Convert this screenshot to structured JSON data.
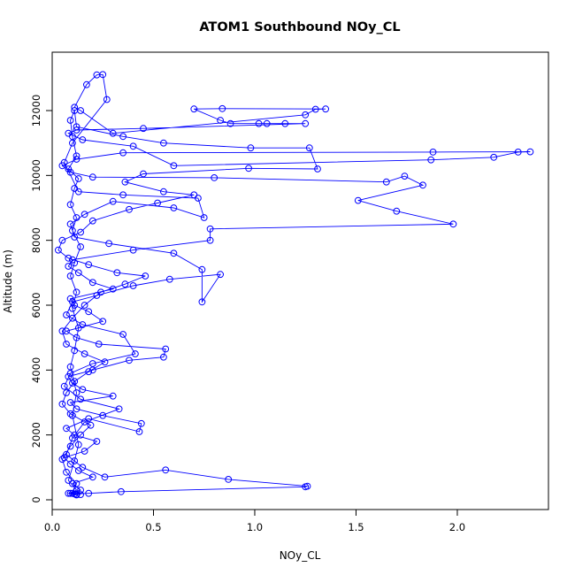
{
  "chart_data": {
    "type": "scatter",
    "title": "ATOM1 Southbound NOy_CL",
    "xlabel": "NOy_CL",
    "ylabel": "Altitude (m)",
    "xlim": [
      0,
      2.45
    ],
    "ylim": [
      -300,
      13800
    ],
    "x_ticks": [
      0.0,
      0.5,
      1.0,
      1.5,
      2.0
    ],
    "x_tick_labels": [
      "0.0",
      "0.5",
      "1.0",
      "1.5",
      "2.0"
    ],
    "y_ticks": [
      0,
      2000,
      4000,
      6000,
      8000,
      10000,
      12000
    ],
    "y_tick_labels": [
      "0",
      "2000",
      "4000",
      "6000",
      "8000",
      "10000",
      "12000"
    ],
    "grid": false,
    "legend": "none",
    "line_and_points": true,
    "series": [
      {
        "color": "#0000ff",
        "points": [
          [
            0.12,
            150
          ],
          [
            0.08,
            200
          ],
          [
            0.14,
            300
          ],
          [
            0.1,
            500
          ],
          [
            0.2,
            700
          ],
          [
            0.13,
            900
          ],
          [
            0.09,
            1100
          ],
          [
            0.06,
            1300
          ],
          [
            0.16,
            1500
          ],
          [
            0.22,
            1800
          ],
          [
            0.11,
            2000
          ],
          [
            0.07,
            2200
          ],
          [
            0.18,
            2500
          ],
          [
            0.43,
            2100
          ],
          [
            0.44,
            2350
          ],
          [
            0.25,
            2600
          ],
          [
            0.12,
            2800
          ],
          [
            0.09,
            3000
          ],
          [
            0.3,
            3200
          ],
          [
            0.15,
            3400
          ],
          [
            0.1,
            3600
          ],
          [
            0.08,
            3800
          ],
          [
            0.2,
            4000
          ],
          [
            0.38,
            4300
          ],
          [
            0.55,
            4400
          ],
          [
            0.56,
            4650
          ],
          [
            0.23,
            4800
          ],
          [
            0.12,
            5000
          ],
          [
            0.07,
            5200
          ],
          [
            0.25,
            5500
          ],
          [
            0.18,
            5800
          ],
          [
            0.11,
            6000
          ],
          [
            0.09,
            6200
          ],
          [
            0.3,
            6500
          ],
          [
            0.2,
            6700
          ],
          [
            0.13,
            7000
          ],
          [
            0.08,
            7200
          ],
          [
            0.1,
            7400
          ],
          [
            0.4,
            7700
          ],
          [
            0.78,
            8000
          ],
          [
            0.78,
            8350
          ],
          [
            1.98,
            8500
          ],
          [
            1.7,
            8900
          ],
          [
            1.51,
            9230
          ],
          [
            1.83,
            9700
          ],
          [
            1.74,
            9980
          ],
          [
            1.65,
            9800
          ],
          [
            0.8,
            9930
          ],
          [
            0.2,
            9950
          ],
          [
            0.09,
            10100
          ],
          [
            0.05,
            10300
          ],
          [
            0.12,
            10500
          ],
          [
            0.35,
            10700
          ],
          [
            1.88,
            10720
          ],
          [
            2.36,
            10730
          ],
          [
            2.3,
            10720
          ],
          [
            2.18,
            10560
          ],
          [
            1.87,
            10480
          ],
          [
            0.6,
            10300
          ],
          [
            0.4,
            10900
          ],
          [
            0.15,
            11100
          ],
          [
            0.08,
            11300
          ],
          [
            0.12,
            11400
          ],
          [
            0.45,
            11450
          ],
          [
            1.25,
            11600
          ],
          [
            1.15,
            11600
          ],
          [
            1.06,
            11600
          ],
          [
            1.02,
            11600
          ],
          [
            0.88,
            11600
          ],
          [
            0.83,
            11700
          ],
          [
            0.7,
            12050
          ],
          [
            0.84,
            12060
          ],
          [
            1.35,
            12050
          ],
          [
            1.3,
            12040
          ],
          [
            1.25,
            11870
          ],
          [
            0.3,
            11300
          ],
          [
            0.14,
            12000
          ],
          [
            0.11,
            12100
          ],
          [
            0.17,
            12800
          ],
          [
            0.22,
            13100
          ],
          [
            0.25,
            13110
          ],
          [
            0.27,
            12340
          ],
          [
            0.1,
            11000
          ],
          [
            0.06,
            10400
          ],
          [
            0.13,
            9500
          ],
          [
            0.35,
            9400
          ],
          [
            0.72,
            9300
          ],
          [
            0.75,
            8700
          ],
          [
            0.6,
            9000
          ],
          [
            0.3,
            9200
          ],
          [
            0.16,
            8800
          ],
          [
            0.09,
            8500
          ],
          [
            0.11,
            8100
          ],
          [
            0.28,
            7900
          ],
          [
            0.6,
            7600
          ],
          [
            0.74,
            7100
          ],
          [
            0.74,
            6100
          ],
          [
            0.83,
            6950
          ],
          [
            0.58,
            6800
          ],
          [
            0.4,
            6600
          ],
          [
            0.22,
            6300
          ],
          [
            0.1,
            6100
          ],
          [
            0.07,
            5700
          ],
          [
            0.15,
            5400
          ],
          [
            0.35,
            5100
          ],
          [
            0.41,
            4500
          ],
          [
            0.2,
            4200
          ],
          [
            0.09,
            3900
          ],
          [
            0.06,
            3500
          ],
          [
            0.14,
            3100
          ],
          [
            0.33,
            2800
          ],
          [
            0.16,
            2400
          ],
          [
            0.1,
            1900
          ],
          [
            0.07,
            1400
          ],
          [
            0.15,
            1000
          ],
          [
            0.26,
            700
          ],
          [
            0.56,
            920
          ],
          [
            0.87,
            630
          ],
          [
            1.26,
            420
          ],
          [
            1.25,
            400
          ],
          [
            0.34,
            250
          ],
          [
            0.18,
            200
          ],
          [
            0.11,
            180
          ],
          [
            0.09,
            200
          ],
          [
            0.12,
            300
          ],
          [
            0.08,
            600
          ],
          [
            0.11,
            1200
          ],
          [
            0.13,
            1700
          ],
          [
            0.1,
            2600
          ],
          [
            0.12,
            3300
          ],
          [
            0.09,
            4100
          ],
          [
            0.11,
            4600
          ],
          [
            0.13,
            5300
          ],
          [
            0.1,
            5900
          ],
          [
            0.12,
            6400
          ],
          [
            0.09,
            6900
          ],
          [
            0.11,
            7300
          ],
          [
            0.14,
            7800
          ],
          [
            0.1,
            8300
          ],
          [
            0.12,
            8700
          ],
          [
            0.09,
            9100
          ],
          [
            0.11,
            9600
          ],
          [
            0.13,
            9900
          ],
          [
            0.08,
            10200
          ],
          [
            0.12,
            10600
          ],
          [
            0.1,
            11200
          ],
          [
            0.09,
            11700
          ],
          [
            0.11,
            12000
          ],
          [
            0.12,
            11500
          ],
          [
            0.35,
            11200
          ],
          [
            0.55,
            11000
          ],
          [
            0.98,
            10850
          ],
          [
            1.27,
            10850
          ],
          [
            1.31,
            10200
          ],
          [
            0.97,
            10220
          ],
          [
            0.45,
            10050
          ],
          [
            0.36,
            9800
          ],
          [
            0.55,
            9500
          ],
          [
            0.7,
            9400
          ],
          [
            0.52,
            9150
          ],
          [
            0.38,
            8950
          ],
          [
            0.2,
            8600
          ],
          [
            0.14,
            8250
          ],
          [
            0.05,
            8000
          ],
          [
            0.03,
            7700
          ],
          [
            0.08,
            7450
          ],
          [
            0.18,
            7250
          ],
          [
            0.32,
            7000
          ],
          [
            0.46,
            6900
          ],
          [
            0.36,
            6650
          ],
          [
            0.24,
            6400
          ],
          [
            0.16,
            6000
          ],
          [
            0.1,
            5600
          ],
          [
            0.05,
            5200
          ],
          [
            0.07,
            4800
          ],
          [
            0.16,
            4500
          ],
          [
            0.26,
            4250
          ],
          [
            0.18,
            3950
          ],
          [
            0.11,
            3650
          ],
          [
            0.07,
            3300
          ],
          [
            0.05,
            2950
          ],
          [
            0.09,
            2650
          ],
          [
            0.19,
            2300
          ],
          [
            0.14,
            2000
          ],
          [
            0.09,
            1650
          ],
          [
            0.05,
            1250
          ],
          [
            0.07,
            850
          ],
          [
            0.12,
            500
          ],
          [
            0.1,
            200
          ],
          [
            0.14,
            160
          ],
          [
            0.12,
            170
          ]
        ]
      }
    ]
  }
}
